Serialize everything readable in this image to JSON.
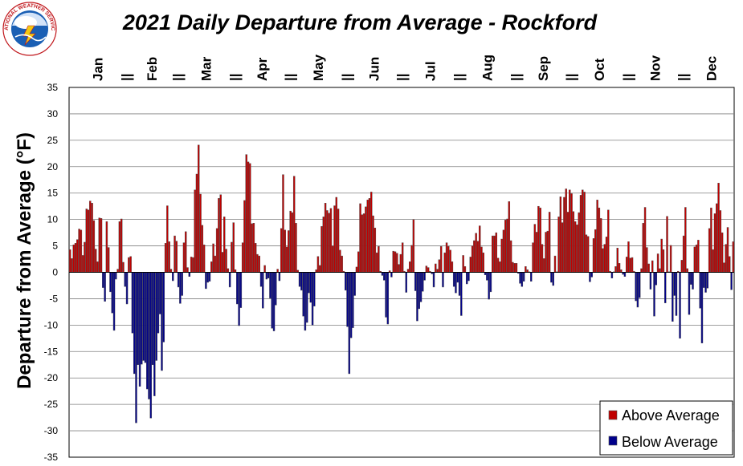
{
  "logo": {
    "text": "NATIONAL WEATHER SERVICE"
  },
  "chart_data": {
    "type": "bar",
    "title": "2021 Daily Departure from Average - Rockford",
    "ylabel": "Departure from Average (°F)",
    "xlabel": "",
    "ylim": [
      -35,
      35
    ],
    "yticks": [
      35,
      30,
      25,
      20,
      15,
      10,
      5,
      0,
      -5,
      -10,
      -15,
      -20,
      -25,
      -30,
      -35
    ],
    "grid": true,
    "months": [
      "Jan",
      "Feb",
      "Mar",
      "Apr",
      "May",
      "Jun",
      "Jul",
      "Aug",
      "Sep",
      "Oct",
      "Nov",
      "Dec"
    ],
    "month_lengths": [
      31,
      28,
      31,
      30,
      31,
      30,
      31,
      31,
      30,
      31,
      30,
      31
    ],
    "month_separator": "||",
    "legend": {
      "position": "bottom-right",
      "entries": [
        "Above Average",
        "Below Average"
      ]
    },
    "colors": {
      "above": "#c00000",
      "below": "#00008b",
      "edge": "#4f4f4f",
      "grid": "#808080"
    },
    "values": [
      4.3,
      2.6,
      5.2,
      5.5,
      6.2,
      8.2,
      8.0,
      3.2,
      5.7,
      12.0,
      11.8,
      13.5,
      13.1,
      9.8,
      4.4,
      2.0,
      10.3,
      10.2,
      -2.9,
      -5.5,
      9.6,
      4.7,
      -3.7,
      -7.7,
      -11.0,
      -1.3,
      0.6,
      9.6,
      10.1,
      1.9,
      -2.7,
      -6.0,
      2.8,
      3.0,
      -11.5,
      -19.2,
      -28.5,
      -17.5,
      -21.6,
      -17.4,
      -16.7,
      -17.1,
      -22.1,
      -24.0,
      -27.6,
      -17.5,
      -23.4,
      -16.7,
      -11.5,
      -7.9,
      -18.6,
      -13.2,
      5.5,
      12.6,
      5.8,
      0.6,
      -1.6,
      6.9,
      5.9,
      -2.8,
      -5.9,
      -4.4,
      5.6,
      7.7,
      0.9,
      -0.8,
      2.9,
      2.8,
      15.6,
      18.6,
      24.1,
      14.8,
      8.9,
      5.2,
      -3.1,
      -1.9,
      -1.7,
      2.0,
      5.4,
      3.1,
      8.3,
      14.0,
      14.7,
      3.8,
      10.5,
      4.4,
      0.7,
      -2.8,
      5.7,
      9.4,
      0.5,
      -6.0,
      -10.1,
      -6.7,
      5.6,
      13.6,
      22.3,
      20.9,
      20.6,
      9.2,
      9.3,
      5.5,
      3.4,
      3.1,
      -2.7,
      -6.8,
      1.3,
      -1.3,
      -1.1,
      -4.9,
      -10.6,
      -11.1,
      -6.2,
      0.6,
      -1.6,
      8.3,
      18.5,
      8.0,
      4.8,
      7.9,
      11.6,
      11.3,
      18.2,
      9.3,
      0.4,
      -2.7,
      -3.4,
      -8.3,
      -11.0,
      -9.5,
      -3.9,
      -5.7,
      -10.0,
      -6.4,
      0.5,
      3.0,
      1.3,
      8.7,
      10.5,
      13.1,
      11.7,
      11.2,
      12.1,
      5.0,
      12.6,
      14.2,
      12.0,
      4.2,
      3.1,
      0.2,
      -3.4,
      -10.3,
      -19.2,
      -12.4,
      -10.5,
      -4.4,
      1.0,
      3.9,
      13.0,
      10.9,
      11.1,
      12.4,
      13.7,
      14.0,
      15.2,
      10.7,
      8.4,
      3.7,
      4.9,
      0.2,
      -0.6,
      -1.5,
      -8.5,
      -9.8,
      0.3,
      -0.9,
      4.0,
      3.9,
      3.6,
      1.5,
      3.4,
      5.6,
      0.2,
      -3.8,
      0.6,
      2.0,
      5.1,
      10.0,
      -3.5,
      -9.2,
      -6.9,
      -5.6,
      -3.6,
      -1.5,
      1.2,
      0.9,
      0.2,
      -0.3,
      -2.8,
      1.6,
      0.6,
      2.4,
      4.9,
      -2.8,
      3.7,
      5.6,
      4.9,
      4.2,
      2.0,
      -2.7,
      -3.9,
      -1.9,
      -4.4,
      -8.2,
      3.2,
      1.1,
      -2.2,
      -1.6,
      2.9,
      5.0,
      6.0,
      7.4,
      5.9,
      8.8,
      4.8,
      3.7,
      -0.5,
      -1.5,
      -5.1,
      -3.7,
      6.9,
      6.9,
      7.5,
      2.7,
      2.0,
      6.3,
      8.0,
      9.9,
      10.1,
      13.4,
      6.0,
      1.9,
      1.7,
      1.7,
      -0.2,
      -2.1,
      -2.7,
      -1.7,
      1.1,
      0.5,
      0.1,
      -1.7,
      5.6,
      9.1,
      7.6,
      12.5,
      12.2,
      5.3,
      2.6,
      7.6,
      7.8,
      11.4,
      -1.9,
      -2.5,
      3.1,
      0.1,
      10.5,
      14.3,
      9.4,
      14.2,
      15.8,
      11.4,
      15.6,
      14.9,
      11.5,
      9.6,
      9.0,
      11.3,
      14.6,
      15.6,
      15.2,
      7.1,
      6.8,
      -1.8,
      -0.9,
      6.4,
      8.1,
      13.7,
      12.2,
      10.2,
      4.5,
      5.3,
      6.7,
      11.8,
      0.2,
      -1.1,
      0.1,
      1.1,
      4.6,
      1.7,
      0.5,
      -0.4,
      -0.8,
      2.9,
      5.8,
      2.7,
      2.8,
      0.2,
      -5.4,
      -6.6,
      -4.8,
      0.7,
      9.3,
      12.3,
      4.7,
      1.6,
      -3.2,
      2.2,
      -8.3,
      -2.4,
      3.5,
      0.7,
      6.3,
      4.3,
      -5.8,
      10.6,
      0.1,
      5.1,
      -9.3,
      -4.4,
      -8.2,
      0.2,
      -12.5,
      2.3,
      6.9,
      12.3,
      0.7,
      -8.0,
      -2.3,
      -3.2,
      4.8,
      5.2,
      6.1,
      -6.8,
      -13.4,
      -2.9,
      -3.8,
      -3.0,
      8.3,
      12.2,
      4.3,
      11.1,
      13.0,
      16.9,
      11.7,
      7.5,
      1.8,
      5.3,
      8.5,
      3.0,
      -3.3,
      5.8
    ]
  }
}
